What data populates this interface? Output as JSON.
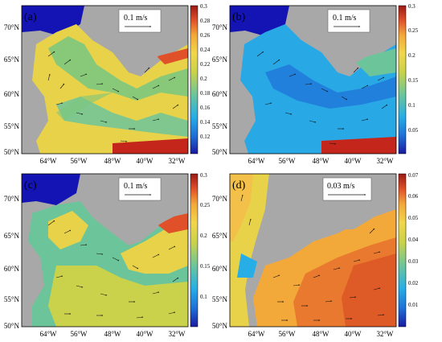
{
  "panels": [
    {
      "letter": "(a)",
      "scale_label": "0.1 m/s",
      "colorbar_ticks": [
        "0.3",
        "0.28",
        "0.26",
        "0.24",
        "0.22",
        "0.2",
        "0.18",
        "0.16",
        "0.14",
        "0.12"
      ],
      "x_ticks": [
        "64°W",
        "56°W",
        "48°W",
        "40°W",
        "32°W"
      ],
      "y_ticks": [
        "70°N",
        "65°N",
        "60°N",
        "55°N",
        "50°N"
      ],
      "colorbar_colors": [
        "#1a1aa0",
        "#1e6fd6",
        "#27aee6",
        "#6cc59a",
        "#c9d24a",
        "#f1d64a",
        "#f3a83a",
        "#e0512a",
        "#9b1a14"
      ]
    },
    {
      "letter": "(b)",
      "scale_label": "0.1 m/s",
      "colorbar_ticks": [
        "0.3",
        "0.25",
        "0.2",
        "0.15",
        "0.1",
        "0.05"
      ],
      "x_ticks": [
        "64°W",
        "56°W",
        "48°W",
        "40°W",
        "32°W"
      ],
      "y_ticks": [
        "70°N",
        "65°N",
        "60°N",
        "55°N",
        "50°N"
      ],
      "colorbar_colors": [
        "#1a1aa0",
        "#1e6fd6",
        "#27aee6",
        "#6cc59a",
        "#c9d24a",
        "#f1d64a",
        "#f3a83a",
        "#e0512a",
        "#9b1a14"
      ]
    },
    {
      "letter": "(c)",
      "scale_label": "0.1 m/s",
      "colorbar_ticks": [
        "0.3",
        "0.25",
        "0.2",
        "0.15",
        "0.1"
      ],
      "x_ticks": [
        "64°W",
        "56°W",
        "48°W",
        "40°W",
        "32°W"
      ],
      "y_ticks": [
        "70°N",
        "65°N",
        "60°N",
        "55°N",
        "50°N"
      ],
      "colorbar_colors": [
        "#1a1aa0",
        "#1e6fd6",
        "#27aee6",
        "#6cc59a",
        "#c9d24a",
        "#f1d64a",
        "#f3a83a",
        "#e0512a",
        "#9b1a14"
      ]
    },
    {
      "letter": "(d)",
      "scale_label": "0.03 m/s",
      "colorbar_ticks": [
        "0.07",
        "0.06",
        "0.05",
        "0.04",
        "0.03",
        "0.02",
        "0.01"
      ],
      "x_ticks": [
        "64°W",
        "56°W",
        "48°W",
        "40°W",
        "32°W"
      ],
      "y_ticks": [
        "70°N",
        "65°N",
        "60°N",
        "55°N",
        "50°N"
      ],
      "colorbar_colors": [
        "#1a1aa0",
        "#1e6fd6",
        "#27aee6",
        "#6cc59a",
        "#c9d24a",
        "#f1d64a",
        "#f3a83a",
        "#e0512a",
        "#9b1a14"
      ]
    }
  ],
  "colors": {
    "land": "#a8a8a8",
    "deep_blue": "#1414b4",
    "frame": "#000000"
  }
}
